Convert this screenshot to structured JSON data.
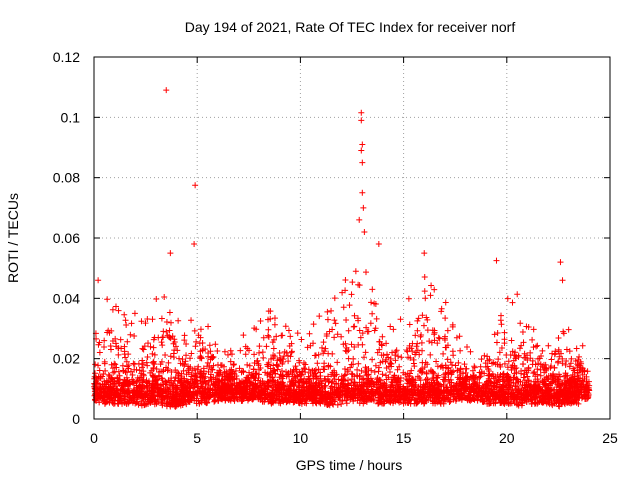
{
  "chart_data": {
    "type": "scatter",
    "title": "Day 194 of 2021, Rate Of TEC Index for receiver norf",
    "xlabel": "GPS time / hours",
    "ylabel": "ROTI / TECUs",
    "xlim": [
      0,
      25
    ],
    "ylim": [
      0,
      0.12
    ],
    "xticks": [
      0,
      5,
      10,
      15,
      20,
      25
    ],
    "xtick_labels": [
      "0",
      "5",
      "10",
      "15",
      "20",
      "25"
    ],
    "yticks": [
      0,
      0.02,
      0.04,
      0.06,
      0.08,
      0.1,
      0.12
    ],
    "ytick_labels": [
      "0",
      "0.02",
      "0.04",
      "0.06",
      "0.08",
      "0.1",
      "0.12"
    ],
    "grid": true,
    "marker": "+",
    "color": "#ff0000",
    "x_range_observed": [
      0,
      24
    ],
    "notable_points": [
      {
        "x": 3.5,
        "y": 0.109
      },
      {
        "x": 4.9,
        "y": 0.0775
      },
      {
        "x": 4.85,
        "y": 0.058
      },
      {
        "x": 12.95,
        "y": 0.1015
      },
      {
        "x": 12.95,
        "y": 0.099
      },
      {
        "x": 13.0,
        "y": 0.091
      },
      {
        "x": 12.95,
        "y": 0.089
      },
      {
        "x": 13.0,
        "y": 0.085
      },
      {
        "x": 13.0,
        "y": 0.075
      },
      {
        "x": 13.05,
        "y": 0.07
      },
      {
        "x": 12.85,
        "y": 0.066
      },
      {
        "x": 13.1,
        "y": 0.062
      },
      {
        "x": 13.8,
        "y": 0.058
      },
      {
        "x": 16.0,
        "y": 0.055
      },
      {
        "x": 19.5,
        "y": 0.0525
      },
      {
        "x": 22.6,
        "y": 0.052
      },
      {
        "x": 22.7,
        "y": 0.046
      },
      {
        "x": 3.7,
        "y": 0.055
      },
      {
        "x": 0.2,
        "y": 0.046
      }
    ],
    "envelope": {
      "description": "Upper envelope of dense point cloud (hours, ROTI)",
      "x": [
        0,
        0.5,
        1,
        1.5,
        2,
        2.5,
        3,
        3.5,
        4,
        4.5,
        5,
        5.5,
        6,
        6.5,
        7,
        7.5,
        8,
        8.5,
        9,
        9.5,
        10,
        10.5,
        11,
        11.5,
        12,
        12.5,
        13,
        13.5,
        14,
        14.5,
        15,
        15.5,
        16,
        16.5,
        17,
        17.5,
        18,
        18.5,
        19,
        19.5,
        20,
        20.5,
        21,
        21.5,
        22,
        22.5,
        23,
        23.5,
        24
      ],
      "upper": [
        0.028,
        0.044,
        0.04,
        0.036,
        0.04,
        0.035,
        0.04,
        0.046,
        0.036,
        0.03,
        0.042,
        0.032,
        0.028,
        0.022,
        0.026,
        0.03,
        0.04,
        0.04,
        0.034,
        0.03,
        0.028,
        0.03,
        0.036,
        0.04,
        0.044,
        0.052,
        0.056,
        0.044,
        0.036,
        0.032,
        0.04,
        0.046,
        0.05,
        0.044,
        0.04,
        0.03,
        0.026,
        0.02,
        0.022,
        0.03,
        0.04,
        0.042,
        0.034,
        0.03,
        0.028,
        0.034,
        0.03,
        0.03,
        0.02
      ],
      "lower": [
        0.006,
        0.005,
        0.005,
        0.005,
        0.005,
        0.004,
        0.005,
        0.004,
        0.004,
        0.005,
        0.005,
        0.005,
        0.006,
        0.006,
        0.006,
        0.006,
        0.005,
        0.005,
        0.005,
        0.005,
        0.005,
        0.005,
        0.005,
        0.004,
        0.005,
        0.005,
        0.005,
        0.005,
        0.005,
        0.005,
        0.005,
        0.005,
        0.005,
        0.005,
        0.005,
        0.006,
        0.006,
        0.006,
        0.005,
        0.005,
        0.005,
        0.004,
        0.005,
        0.005,
        0.005,
        0.004,
        0.005,
        0.005,
        0.006
      ]
    }
  }
}
